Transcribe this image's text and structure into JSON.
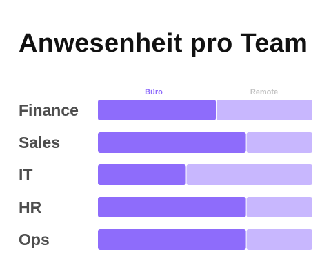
{
  "chart_data": {
    "type": "bar",
    "orientation": "horizontal",
    "stacked": true,
    "normalized": true,
    "title": "Anwesenheit pro Team",
    "categories": [
      "Finance",
      "Sales",
      "IT",
      "HR",
      "Ops"
    ],
    "series": [
      {
        "name": "Büro",
        "color": "#8e6cfb",
        "values": [
          55,
          69,
          41,
          69,
          69
        ]
      },
      {
        "name": "Remote",
        "color": "#c8b7fe",
        "values": [
          45,
          31,
          59,
          31,
          31
        ]
      }
    ],
    "xlim": [
      0,
      100
    ],
    "grid": false,
    "legend_position": "top"
  }
}
